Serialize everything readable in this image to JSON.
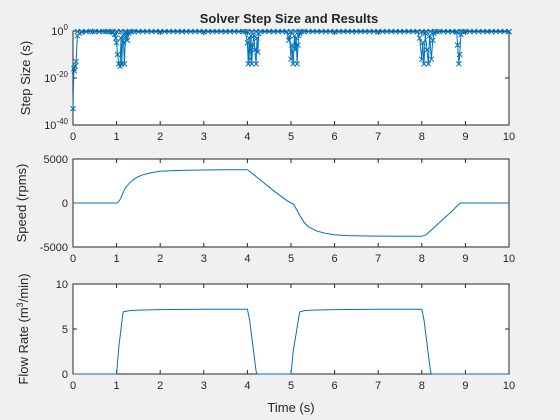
{
  "figure": {
    "title": "Solver Step Size and Results",
    "background": "#f0f0f0",
    "series_color": "#0072bd"
  },
  "chart_data": [
    {
      "type": "scatter",
      "title": "Solver Step Size and Results",
      "xlabel": "",
      "ylabel": "Step Size (s)",
      "xlim": [
        0,
        10
      ],
      "ylim": [
        1e-40,
        1
      ],
      "yscale": "log",
      "grid": false,
      "x_ticks": [
        "0",
        "1",
        "2",
        "3",
        "4",
        "5",
        "6",
        "7",
        "8",
        "9",
        "10"
      ],
      "y_ticks": [
        {
          "base": "10",
          "exp": "0"
        },
        {
          "base": "10",
          "exp": "-20"
        },
        {
          "base": "10",
          "exp": "-40"
        }
      ],
      "marker": "x",
      "line": true,
      "baseline_log10": -0.2,
      "points": [
        [
          0.0,
          -33
        ],
        [
          0.02,
          -16
        ],
        [
          0.03,
          -17
        ],
        [
          0.05,
          -15
        ],
        [
          0.07,
          -13
        ],
        [
          0.1,
          -2
        ],
        [
          0.15,
          -1
        ],
        [
          0.2,
          -0.5
        ],
        [
          0.3,
          -0.3
        ],
        [
          0.45,
          -0.3
        ],
        [
          0.6,
          -0.3
        ],
        [
          0.75,
          -0.3
        ],
        [
          0.85,
          -0.3
        ],
        [
          0.9,
          -0.3
        ],
        [
          0.92,
          -0.6
        ],
        [
          0.95,
          -1.5
        ],
        [
          0.98,
          -3
        ],
        [
          1.0,
          -5
        ],
        [
          1.02,
          -10
        ],
        [
          1.05,
          -14
        ],
        [
          1.08,
          -15
        ],
        [
          1.1,
          -3
        ],
        [
          1.12,
          -14
        ],
        [
          1.14,
          -2
        ],
        [
          1.16,
          -5
        ],
        [
          1.18,
          -14
        ],
        [
          1.2,
          -3
        ],
        [
          1.22,
          -1
        ],
        [
          1.25,
          -4
        ],
        [
          1.28,
          -1
        ],
        [
          1.35,
          -0.3
        ],
        [
          1.5,
          -0.3
        ],
        [
          2.0,
          -0.3
        ],
        [
          2.5,
          -0.3
        ],
        [
          3.0,
          -0.3
        ],
        [
          3.5,
          -0.3
        ],
        [
          3.95,
          -0.3
        ],
        [
          4.0,
          -5
        ],
        [
          4.02,
          -14
        ],
        [
          4.04,
          -3
        ],
        [
          4.06,
          -12
        ],
        [
          4.08,
          -2
        ],
        [
          4.1,
          -14
        ],
        [
          4.12,
          -6
        ],
        [
          4.15,
          -2
        ],
        [
          4.17,
          -8
        ],
        [
          4.2,
          -14
        ],
        [
          4.22,
          -3
        ],
        [
          4.24,
          -9
        ],
        [
          4.26,
          -1
        ],
        [
          4.3,
          -0.3
        ],
        [
          4.6,
          -0.3
        ],
        [
          4.9,
          -0.3
        ],
        [
          4.95,
          -4
        ],
        [
          4.97,
          -2
        ],
        [
          5.0,
          -12
        ],
        [
          5.02,
          -6
        ],
        [
          5.05,
          -14
        ],
        [
          5.08,
          -2
        ],
        [
          5.1,
          -8
        ],
        [
          5.12,
          -3
        ],
        [
          5.14,
          -14
        ],
        [
          5.16,
          -6
        ],
        [
          5.18,
          -2
        ],
        [
          5.2,
          -1
        ],
        [
          5.25,
          -0.3
        ],
        [
          6.0,
          -0.3
        ],
        [
          7.0,
          -0.3
        ],
        [
          7.9,
          -0.3
        ],
        [
          7.95,
          -3
        ],
        [
          8.0,
          -12
        ],
        [
          8.02,
          -5
        ],
        [
          8.05,
          -14
        ],
        [
          8.08,
          -1
        ],
        [
          8.12,
          -8
        ],
        [
          8.15,
          -14
        ],
        [
          8.18,
          -2
        ],
        [
          8.22,
          -12
        ],
        [
          8.25,
          -4
        ],
        [
          8.28,
          -1
        ],
        [
          8.35,
          -0.3
        ],
        [
          8.7,
          -0.3
        ],
        [
          8.8,
          -0.5
        ],
        [
          8.82,
          -6
        ],
        [
          8.85,
          -14
        ],
        [
          8.87,
          -10
        ],
        [
          8.9,
          -1.5
        ],
        [
          8.95,
          -0.3
        ],
        [
          9.5,
          -0.3
        ],
        [
          10.0,
          -0.3
        ]
      ]
    },
    {
      "type": "line",
      "title": "",
      "xlabel": "",
      "ylabel": "Speed (rpms)",
      "xlim": [
        0,
        10
      ],
      "ylim": [
        -5000,
        5000
      ],
      "grid": false,
      "x_ticks": [
        "0",
        "1",
        "2",
        "3",
        "4",
        "5",
        "6",
        "7",
        "8",
        "9",
        "10"
      ],
      "y_ticks": [
        "5000",
        "0",
        "-5000"
      ],
      "series": [
        {
          "x": [
            0,
            1.0,
            1.05,
            1.1,
            1.15,
            1.2,
            1.3,
            1.4,
            1.5,
            1.6,
            1.8,
            2.0,
            2.3,
            2.6,
            3.0,
            3.5,
            4.0,
            4.1,
            4.3,
            4.6,
            4.9,
            5.0,
            5.05,
            5.1,
            5.2,
            5.3,
            5.4,
            5.6,
            5.8,
            6.0,
            6.3,
            6.6,
            7.0,
            7.5,
            8.0,
            8.1,
            8.3,
            8.5,
            8.7,
            8.85,
            8.9,
            10.0
          ],
          "y": [
            0,
            0,
            150,
            600,
            1200,
            1700,
            2300,
            2700,
            3000,
            3200,
            3450,
            3600,
            3680,
            3720,
            3750,
            3770,
            3780,
            3400,
            2600,
            1400,
            300,
            0,
            -100,
            -500,
            -1400,
            -2200,
            -2700,
            -3200,
            -3450,
            -3600,
            -3700,
            -3740,
            -3760,
            -3780,
            -3780,
            -3600,
            -2700,
            -1800,
            -900,
            -150,
            0,
            0
          ]
        }
      ]
    },
    {
      "type": "line",
      "title": "",
      "xlabel": "Time (s)",
      "ylabel": "Flow Rate (m3/min)",
      "ylabel_parts": {
        "main": "Flow Rate (m",
        "sup": "3",
        "rest": "/min)"
      },
      "xlim": [
        0,
        10
      ],
      "ylim": [
        0,
        10
      ],
      "grid": false,
      "x_ticks": [
        "0",
        "1",
        "2",
        "3",
        "4",
        "5",
        "6",
        "7",
        "8",
        "9",
        "10"
      ],
      "y_ticks": [
        "10",
        "5",
        "0"
      ],
      "series": [
        {
          "x": [
            0,
            1.0,
            1.05,
            1.15,
            1.3,
            1.5,
            2.0,
            3.0,
            4.0,
            4.05,
            4.2,
            4.22,
            5.0,
            5.05,
            5.2,
            5.3,
            5.5,
            6.0,
            7.0,
            8.0,
            8.05,
            8.2,
            8.22,
            10.0
          ],
          "y": [
            0,
            0,
            3.0,
            6.9,
            7.05,
            7.1,
            7.15,
            7.2,
            7.2,
            6.0,
            0.3,
            0,
            0,
            2.5,
            6.9,
            7.05,
            7.1,
            7.15,
            7.2,
            7.2,
            6.0,
            0.3,
            0,
            0
          ]
        }
      ]
    }
  ]
}
